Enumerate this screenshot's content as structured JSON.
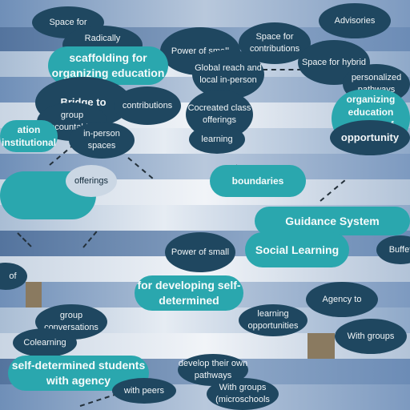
{
  "labels": {
    "space_for_top": "Space for",
    "radically_personalized": "Radically personalized",
    "power_of_small_1": "Power of small",
    "space_for_contributions": "Space for contributions",
    "advisories": "Advisories",
    "space_for_hybrid": "Space for hybrid",
    "scaffolding": "scaffolding for organizing education",
    "global_reach": "Global reach and local in-person",
    "personalized_pathways": "personalized pathways",
    "bridge_to": "Bridge to",
    "contributions": "contributions",
    "group_accountability": "group accountability",
    "cocreated_class": "Cocreated class offerings",
    "organizing_education": "organizing education outside of institutions",
    "opportunity": "opportunity",
    "education_institutional": "ation institutional",
    "learning": "learning",
    "in_person_spaces": "in-person spaces",
    "offerings": "offerings",
    "boundaries": "boundaries",
    "guidance_system": "Guidance System",
    "social_learning": "Social Learning",
    "power_of_small_2": "Power of small",
    "buffet": "Buffet",
    "of": "of",
    "for_developing": "for developing self-determined",
    "agency_to": "Agency to",
    "group_conversations": "group conversations",
    "learning_opportunities": "learning opportunities",
    "with_groups": "With groups",
    "colearning": "Colearning",
    "self_determined_students": "self-determined students with agency",
    "develop_their_own_pathways": "develop their own pathways",
    "with_peers": "with peers",
    "with_groups_microschools": "With groups (microschools"
  },
  "colors": {
    "navy": "#1f4760",
    "teal": "#2aa7ae",
    "sky": "#8ea6c6"
  }
}
